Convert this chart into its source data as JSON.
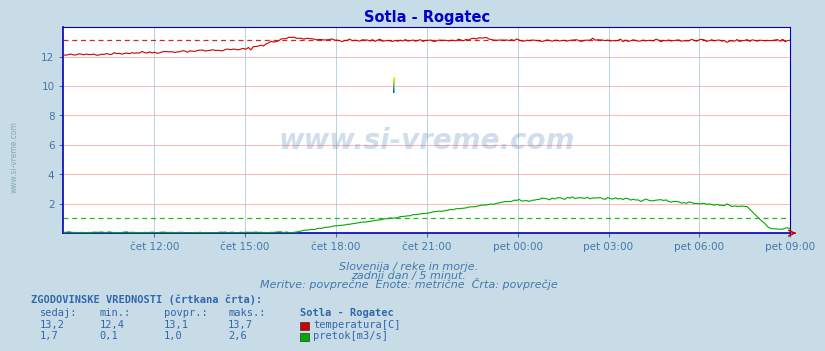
{
  "title": "Sotla - Rogatec",
  "bg_color": "#c8dce8",
  "plot_bg_color": "#ffffff",
  "grid_color_h": "#ffaaaa",
  "grid_color_v": "#aaccdd",
  "axis_color": "#0000bb",
  "title_color": "#0000cc",
  "subtitle_lines": [
    "Slovenija / reke in morje.",
    "zadnji dan / 5 minut.",
    "Meritve: povprečne  Enote: metrične  Črta: povprečje"
  ],
  "xlabel_ticks": [
    "čet 12:00",
    "čet 15:00",
    "čet 18:00",
    "čet 21:00",
    "pet 00:00",
    "pet 03:00",
    "pet 06:00",
    "pet 09:00"
  ],
  "ylim": [
    0,
    14
  ],
  "ytick_vals": [
    2,
    4,
    6,
    8,
    10,
    12
  ],
  "ytick_labs": [
    "2",
    "4",
    "6",
    "8",
    "10",
    "12"
  ],
  "temp_color": "#cc0000",
  "flow_color": "#00aa00",
  "watermark_text": "www.si-vreme.com",
  "watermark_color": "#5588bb",
  "watermark_alpha": 0.28,
  "temp_avg": 13.1,
  "flow_avg": 1.0,
  "table_header": "ZGODOVINSKE VREDNOSTI (črtkana črta):",
  "col_headers": [
    "sedaj:",
    "min.:",
    "povpr.:",
    "maks.:"
  ],
  "station_label": "Sotla - Rogatec",
  "legend1": "temperatura[C]",
  "legend2": "pretok[m3/s]",
  "temp_row": [
    "13,2",
    "12,4",
    "13,1",
    "13,7"
  ],
  "flow_row": [
    "1,7",
    "0,1",
    "1,0",
    "2,6"
  ],
  "n_points": 288,
  "tick_color": "#4477aa",
  "label_color": "#3366aa",
  "sidewater_text": "www.si-vreme.com"
}
